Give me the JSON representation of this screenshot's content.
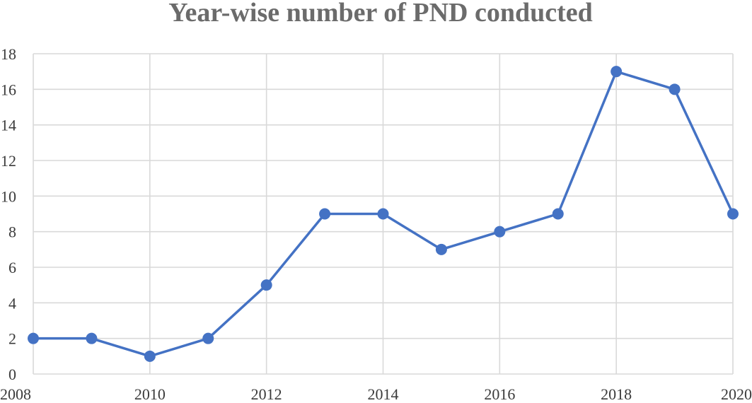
{
  "chart_data": {
    "type": "line",
    "title": "Year-wise number of PND conducted",
    "xlabel": "",
    "ylabel": "",
    "x": [
      2008,
      2009,
      2010,
      2011,
      2012,
      2013,
      2014,
      2015,
      2016,
      2017,
      2018,
      2019,
      2020
    ],
    "series": [
      {
        "values": [
          2,
          2,
          1,
          2,
          5,
          9,
          9,
          7,
          8,
          9,
          17,
          16,
          9
        ],
        "color": "#4472c4"
      }
    ],
    "xlim": [
      2008,
      2020
    ],
    "ylim": [
      0,
      18
    ],
    "x_ticks": [
      "2008",
      "2010",
      "2012",
      "2014",
      "2016",
      "2018",
      "2020"
    ],
    "y_ticks": [
      "0",
      "2",
      "4",
      "6",
      "8",
      "10",
      "12",
      "14",
      "16",
      "18"
    ],
    "grid": true,
    "legend": "none"
  }
}
